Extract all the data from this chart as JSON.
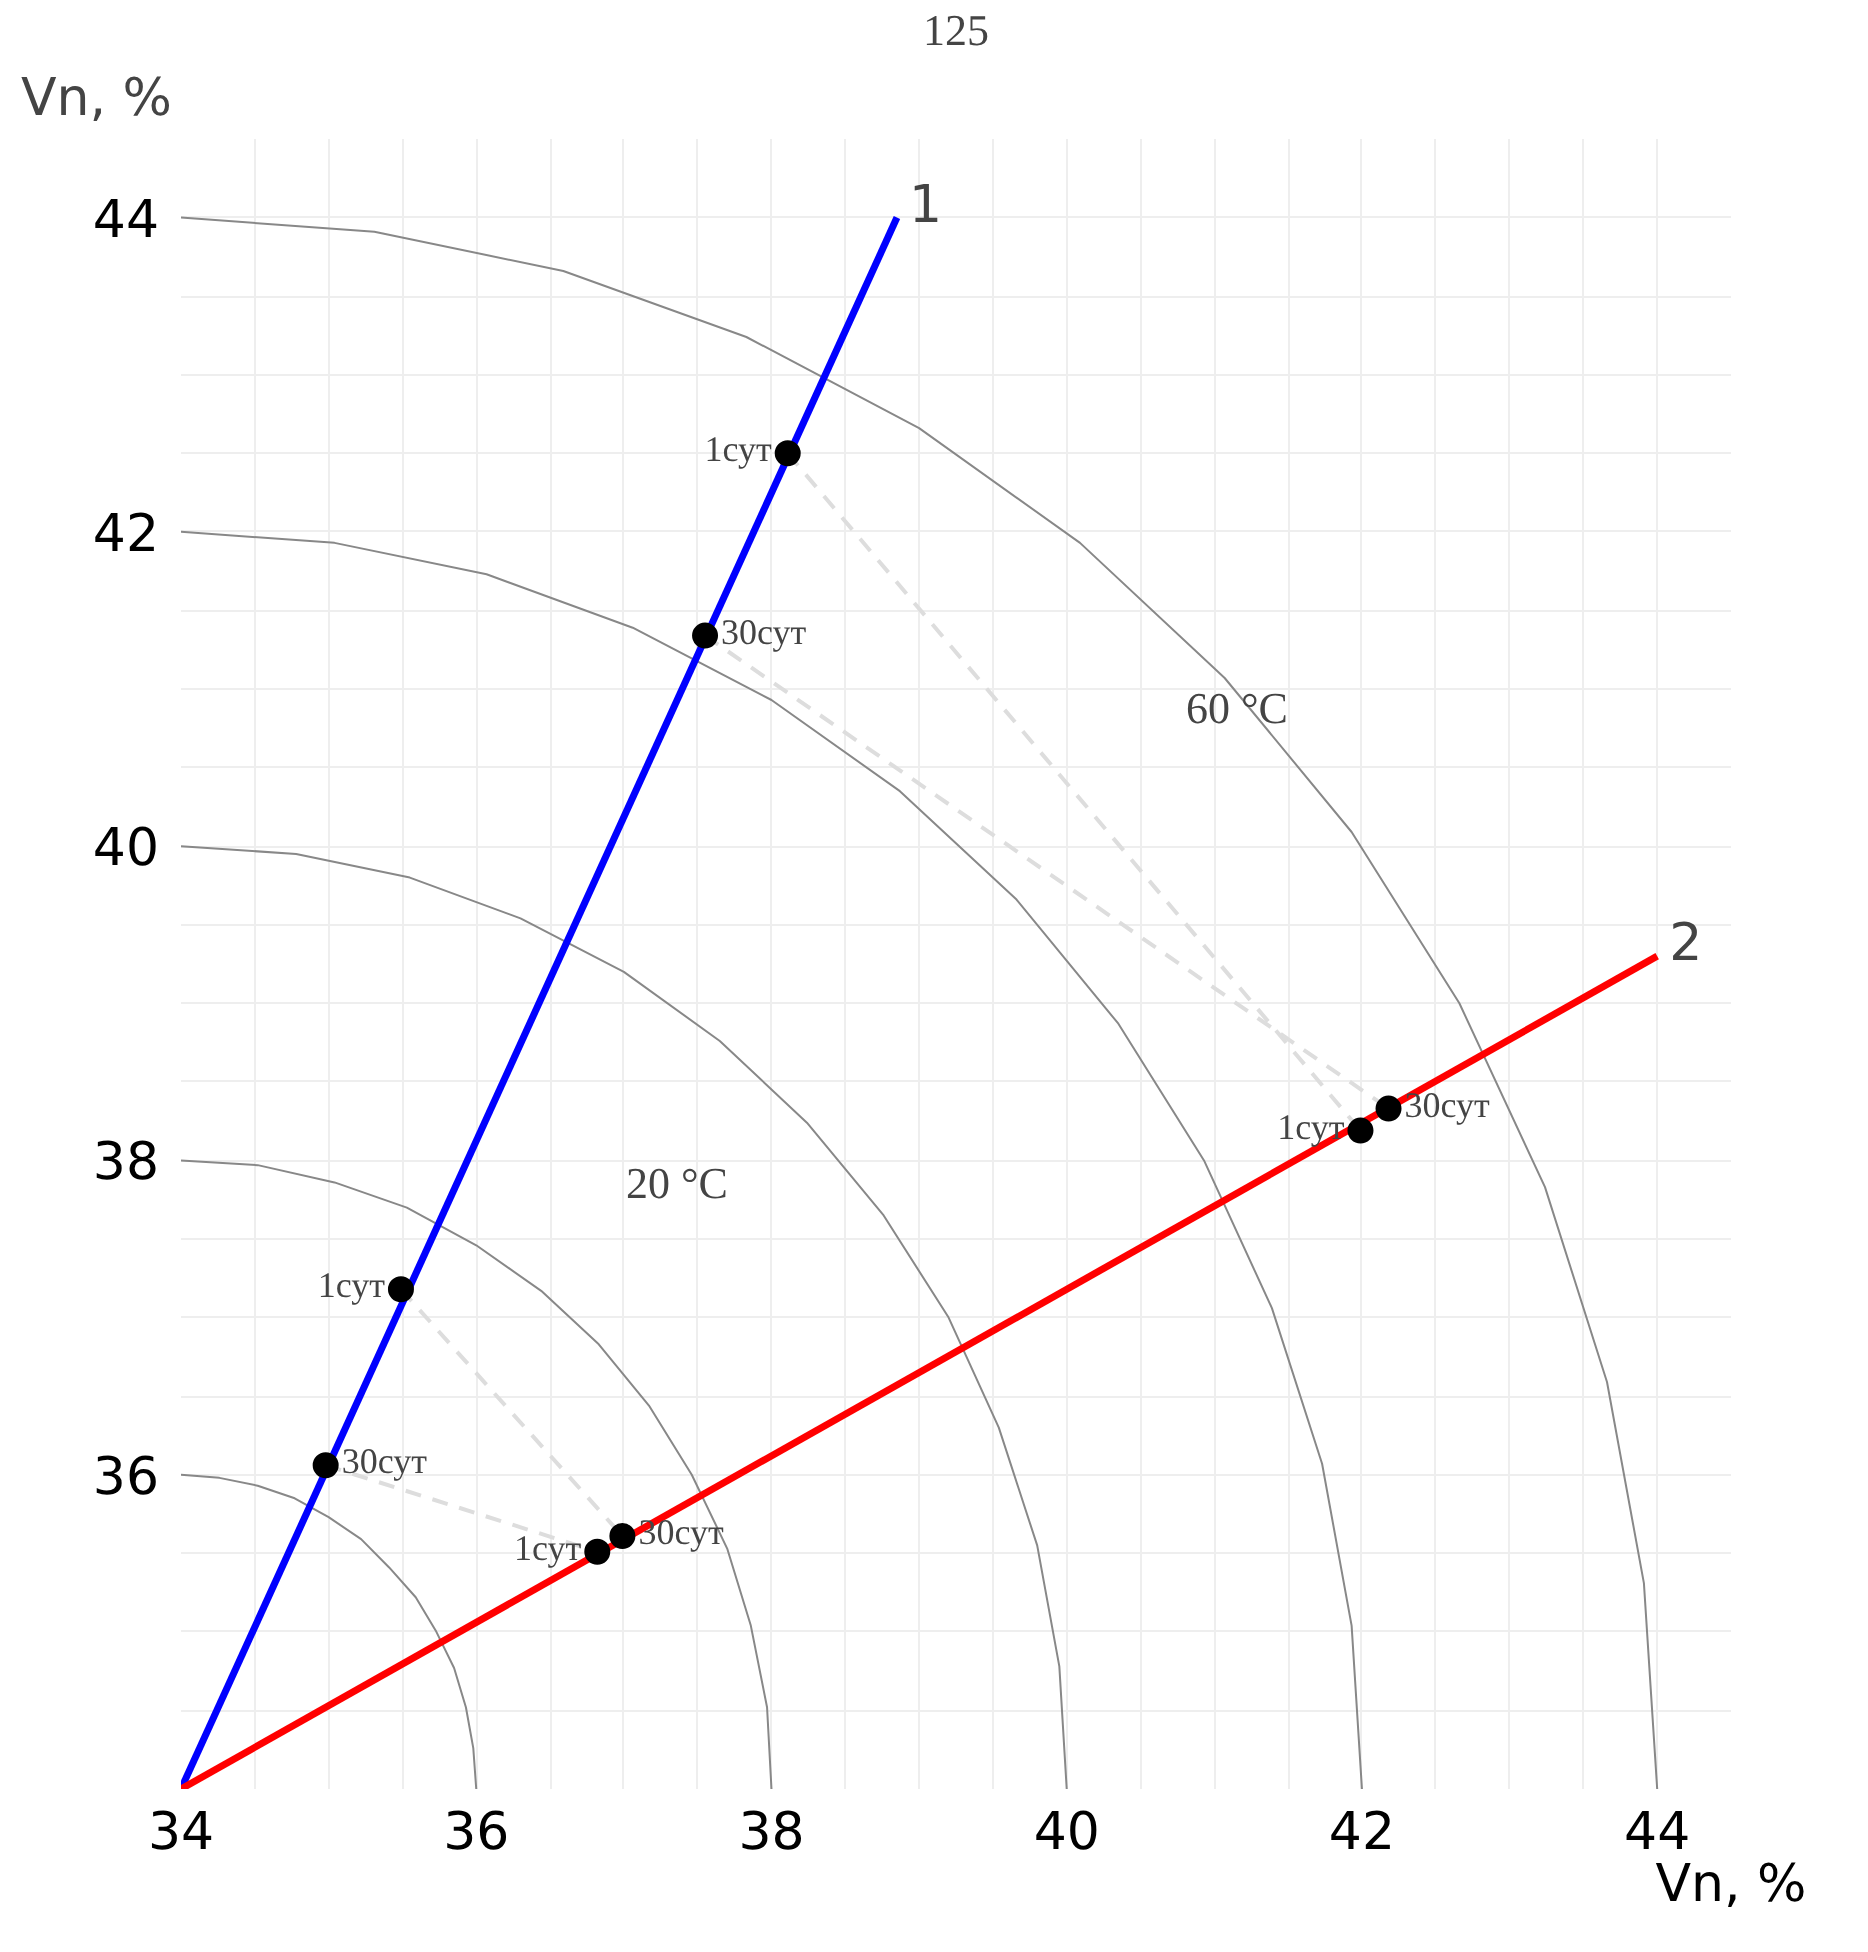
{
  "chart_data": {
    "type": "line",
    "title": "125",
    "xlabel": "Vn, %",
    "ylabel": "Vn, %",
    "xlim": [
      34,
      44.5
    ],
    "ylim": [
      34,
      44.5
    ],
    "xticks": [
      34,
      {
        "value": 34.5,
        "label": null
      },
      {
        "value": 35,
        "label": null
      },
      {
        "value": 35.5,
        "label": null
      },
      36,
      {
        "value": 36.5,
        "label": null
      },
      {
        "value": 37,
        "label": null
      },
      {
        "value": 37.5,
        "label": null
      },
      38,
      {
        "value": 38.5,
        "label": null
      },
      {
        "value": 39,
        "label": null
      },
      {
        "value": 39.5,
        "label": null
      },
      40,
      {
        "value": 40.5,
        "label": null
      },
      {
        "value": 41,
        "label": null
      },
      {
        "value": 41.5,
        "label": null
      },
      42,
      {
        "value": 42.5,
        "label": null
      },
      {
        "value": 43,
        "label": null
      },
      {
        "value": 43.5,
        "label": null
      },
      44
    ],
    "yticks": [
      {
        "value": 34.5,
        "label": null
      },
      {
        "value": 35,
        "label": null
      },
      {
        "value": 35.5,
        "label": null
      },
      36,
      {
        "value": 36.5,
        "label": null
      },
      {
        "value": 37,
        "label": null
      },
      {
        "value": 37.5,
        "label": null
      },
      38,
      {
        "value": 38.5,
        "label": null
      },
      {
        "value": 39,
        "label": null
      },
      {
        "value": 39.5,
        "label": null
      },
      40,
      {
        "value": 40.5,
        "label": null
      },
      {
        "value": 41,
        "label": null
      },
      {
        "value": 41.5,
        "label": null
      },
      42,
      {
        "value": 42.5,
        "label": null
      },
      {
        "value": 43,
        "label": null
      },
      {
        "value": 43.5,
        "label": null
      },
      44
    ],
    "grid": true,
    "annotations": [
      "60 °C",
      "20 °C",
      {
        "text": "1сут",
        "x": 38.11,
        "y": 42.5
      },
      {
        "text": "30сут",
        "x": 37.55,
        "y": 41.34
      },
      {
        "text": "1сут",
        "x": 41.99,
        "y": 38.19
      },
      {
        "text": "30сут",
        "x": 42.18,
        "y": 38.33
      },
      {
        "text": "1сут",
        "x": 35.49,
        "y": 37.18
      },
      {
        "text": "30сут",
        "x": 34.98,
        "y": 36.06
      },
      {
        "text": "1сут",
        "x": 36.82,
        "y": 35.51
      },
      {
        "text": "30сут",
        "x": 36.99,
        "y": 35.61
      }
    ],
    "series": [
      {
        "color": "#888888",
        "x": [
          34,
          34.26,
          34.52,
          34.77,
          35,
          35.22,
          35.41,
          35.59,
          35.73,
          35.85,
          35.93,
          35.98,
          36
        ],
        "values": [
          36,
          35.98,
          35.93,
          35.85,
          35.73,
          35.59,
          35.41,
          35.22,
          35,
          34.77,
          34.52,
          34.26,
          34
        ]
      },
      {
        "color": "#888888",
        "x": [
          34,
          34.52,
          35.04,
          35.53,
          36,
          36.44,
          36.83,
          37.17,
          37.46,
          37.7,
          37.86,
          37.97,
          38
        ],
        "values": [
          38,
          37.97,
          37.86,
          37.7,
          37.46,
          37.17,
          36.83,
          36.44,
          36,
          35.53,
          35.04,
          34.52,
          34
        ]
      },
      {
        "color": "#888888",
        "x": [
          34,
          34.78,
          35.55,
          36.3,
          37,
          37.65,
          38.24,
          38.76,
          39.2,
          39.54,
          39.8,
          39.95,
          40
        ],
        "values": [
          40,
          39.95,
          39.8,
          39.54,
          39.2,
          38.76,
          38.24,
          37.65,
          37,
          36.3,
          35.55,
          34.78,
          34
        ]
      },
      {
        "color": "#888888",
        "x": [
          34,
          35.04,
          36.07,
          37.06,
          38,
          38.87,
          39.66,
          40.35,
          40.93,
          41.39,
          41.73,
          41.93,
          42
        ],
        "values": [
          42,
          41.93,
          41.73,
          41.39,
          40.93,
          40.35,
          39.66,
          38.87,
          38,
          37.06,
          36.07,
          35.04,
          34
        ]
      },
      {
        "color": "#888888",
        "x": [
          34,
          35.31,
          36.59,
          37.83,
          39,
          40.09,
          41.07,
          41.93,
          42.66,
          43.24,
          43.66,
          43.91,
          44
        ],
        "values": [
          44,
          43.91,
          43.66,
          43.24,
          42.66,
          41.93,
          41.07,
          40.09,
          39,
          37.83,
          36.59,
          35.31,
          34
        ]
      },
      {
        "color": "#dddddd",
        "line_style": "dashed",
        "x": [
          38.11,
          41.99
        ],
        "values": [
          42.5,
          38.19
        ]
      },
      {
        "color": "#dddddd",
        "line_style": "dashed",
        "x": [
          37.55,
          42.18
        ],
        "values": [
          41.34,
          38.33
        ]
      },
      {
        "color": "#dddddd",
        "line_style": "dashed",
        "x": [
          35.49,
          36.99
        ],
        "values": [
          37.18,
          35.61
        ]
      },
      {
        "color": "#dddddd",
        "line_style": "dashed",
        "x": [
          34.98,
          36.82
        ],
        "values": [
          36.06,
          35.51
        ]
      },
      {
        "name": "1",
        "color": "#0000ff",
        "x": [
          34,
          38.85
        ],
        "values": [
          34,
          44
        ]
      },
      {
        "name": "2",
        "color": "#ff0000",
        "x": [
          34,
          44
        ],
        "values": [
          34,
          39.3
        ]
      },
      {
        "type": "scatter",
        "marker": "circle",
        "color": "#000000",
        "x": [
          38.11,
          37.55,
          41.99,
          42.18,
          35.49,
          34.98,
          36.82,
          36.99
        ],
        "values": [
          42.5,
          41.34,
          38.19,
          38.33,
          37.18,
          36.06,
          35.51,
          35.61
        ]
      }
    ]
  }
}
